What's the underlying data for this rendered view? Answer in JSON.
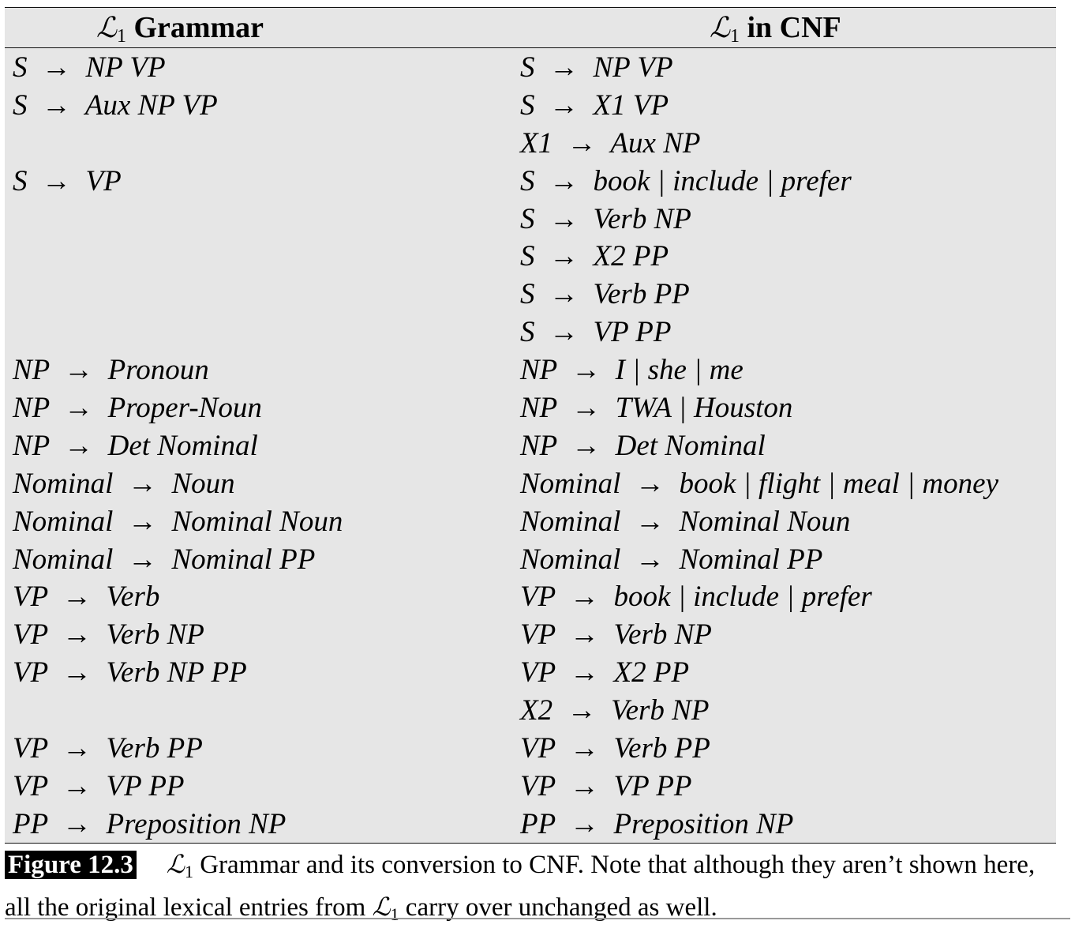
{
  "header": {
    "left_symbol": "ℒ",
    "left_subscript": "1",
    "left_title": " Grammar",
    "right_symbol": "ℒ",
    "right_subscript": "1",
    "right_title": " in CNF"
  },
  "rows": [
    {
      "left": "S  →  NP VP",
      "right": "S  →  NP VP"
    },
    {
      "left": "S  →  Aux NP VP",
      "right": "S  →  X1 VP"
    },
    {
      "left": "",
      "right": "X1  →  Aux NP"
    },
    {
      "left": "S  →  VP",
      "right": "S  →  book | include | prefer"
    },
    {
      "left": "",
      "right": "S  →  Verb NP"
    },
    {
      "left": "",
      "right": "S  →  X2 PP"
    },
    {
      "left": "",
      "right": "S  →  Verb PP"
    },
    {
      "left": "",
      "right": "S  →  VP PP"
    },
    {
      "left": "NP  →  Pronoun",
      "right": "NP  →  I | she | me"
    },
    {
      "left": "NP  →  Proper-Noun",
      "right": "NP  →  TWA | Houston"
    },
    {
      "left": "NP  →  Det Nominal",
      "right": "NP  →  Det Nominal"
    },
    {
      "left": "Nominal  →  Noun",
      "right": "Nominal  →  book | flight | meal | money"
    },
    {
      "left": "Nominal  →  Nominal Noun",
      "right": "Nominal  →  Nominal Noun"
    },
    {
      "left": "Nominal  →  Nominal PP",
      "right": "Nominal  →  Nominal PP"
    },
    {
      "left": "VP  →  Verb",
      "right": "VP  →  book | include | prefer"
    },
    {
      "left": "VP  →  Verb NP",
      "right": "VP  →  Verb NP"
    },
    {
      "left": "VP  →  Verb NP PP",
      "right": "VP  →  X2 PP"
    },
    {
      "left": "",
      "right": "X2  →  Verb NP"
    },
    {
      "left": "VP  →  Verb PP",
      "right": "VP  →  Verb PP"
    },
    {
      "left": "VP  →  VP PP",
      "right": "VP  →  VP PP"
    },
    {
      "left": "PP  →  Preposition NP",
      "right": "PP  →  Preposition NP"
    }
  ],
  "caption": {
    "label": "Figure 12.3",
    "symbol": "ℒ",
    "subscript": "1",
    "text_1": " Grammar and its conversion to CNF. Note that although they aren’t shown here, all the original lexical entries from ",
    "symbol_2": "ℒ",
    "subscript_2": "1",
    "text_2": " carry over unchanged as well."
  }
}
